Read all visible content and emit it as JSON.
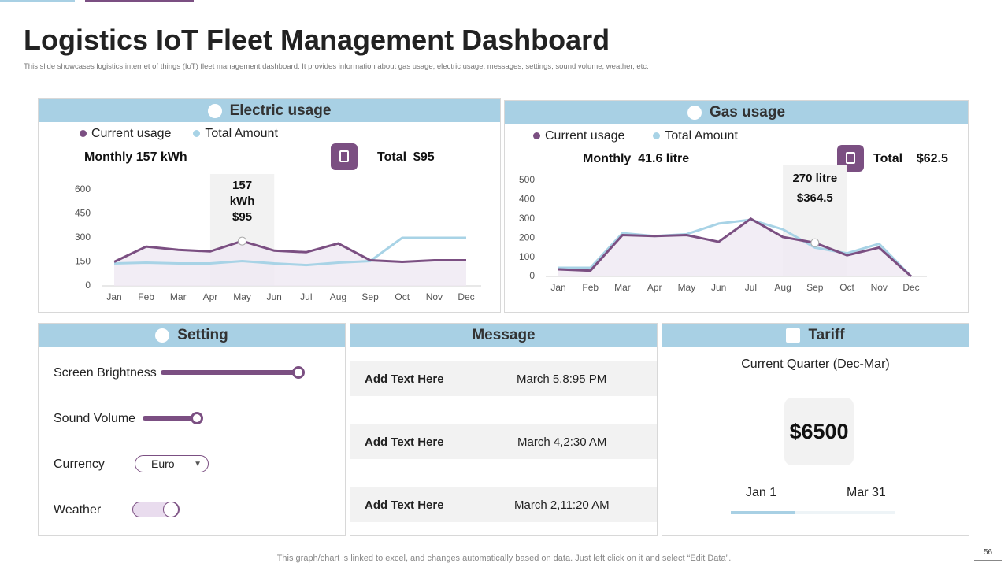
{
  "header": {
    "title": "Logistics IoT Fleet Management Dashboard",
    "subtitle": "This slide showcases logistics internet of things (IoT) fleet management dashboard. It provides information about gas usage, electric usage, messages, settings, sound volume, weather, etc."
  },
  "chart_data": [
    {
      "type": "line",
      "title": "Electric usage",
      "summary": "Monthly 157 kWh",
      "total": "Total  $95",
      "categories": [
        "Jan",
        "Feb",
        "Mar",
        "Apr",
        "May",
        "Jun",
        "Jul",
        "Aug",
        "Sep",
        "Oct",
        "Nov",
        "Dec"
      ],
      "series": [
        {
          "name": "Current usage",
          "color": "#7b4f82",
          "values": [
            150,
            245,
            225,
            215,
            280,
            220,
            210,
            265,
            160,
            150,
            160,
            160
          ]
        },
        {
          "name": "Total Amount",
          "color": "#a8d3e6",
          "values": [
            140,
            145,
            140,
            140,
            155,
            140,
            130,
            145,
            155,
            300,
            300,
            300
          ]
        }
      ],
      "ylim": [
        0,
        600
      ],
      "yticks": [
        0,
        150,
        300,
        450,
        600
      ],
      "annotation": {
        "category": "May",
        "lines": [
          "157",
          "kWh",
          "$95"
        ]
      }
    },
    {
      "type": "line",
      "title": "Gas usage",
      "summary": "Monthly  41.6 litre",
      "total": "Total    $62.5",
      "categories": [
        "Jan",
        "Feb",
        "Mar",
        "Apr",
        "May",
        "Jun",
        "Jul",
        "Aug",
        "Sep",
        "Oct",
        "Nov",
        "Dec"
      ],
      "series": [
        {
          "name": "Current usage",
          "color": "#7b4f82",
          "values": [
            37,
            30,
            215,
            210,
            215,
            180,
            300,
            205,
            175,
            110,
            150,
            0
          ]
        },
        {
          "name": "Total Amount",
          "color": "#a8d3e6",
          "values": [
            45,
            45,
            225,
            210,
            220,
            275,
            295,
            245,
            150,
            120,
            170,
            0
          ]
        }
      ],
      "ylim": [
        0,
        500
      ],
      "yticks": [
        0,
        100,
        200,
        300,
        400,
        500
      ],
      "annotation": {
        "category": "Sep",
        "lines": [
          "270 litre",
          "$364.5"
        ]
      }
    }
  ],
  "setting": {
    "title": "Setting",
    "items": [
      "Screen Brightness",
      "Sound Volume",
      "Currency",
      "Weather"
    ],
    "currency": "Euro"
  },
  "message": {
    "title": "Message",
    "rows": [
      {
        "text": "Add Text Here",
        "time": "March 5,8:95 PM"
      },
      {
        "text": "Add Text Here",
        "time": "March 4,2:30 AM"
      },
      {
        "text": "Add Text Here",
        "time": "March 2,11:20 AM"
      }
    ]
  },
  "tariff": {
    "title": "Tariff",
    "period": "Current Quarter (Dec-Mar)",
    "amount": "$6500",
    "start": "Jan 1",
    "end": "Mar 31"
  },
  "footer": "This graph/chart is linked to excel, and changes automatically based on data. Just left click on it and select “Edit Data”.",
  "page_number": "56"
}
